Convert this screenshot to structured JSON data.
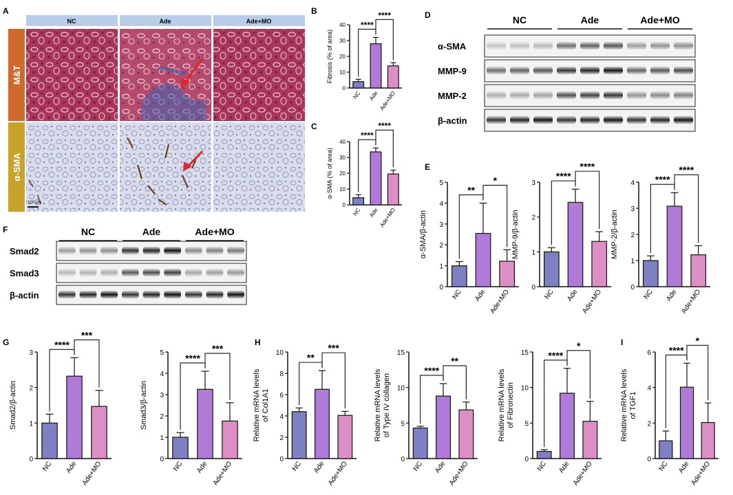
{
  "panel_letters": {
    "A": "A",
    "B": "B",
    "C": "C",
    "D": "D",
    "E": "E",
    "F": "F",
    "G": "G",
    "H": "H",
    "I": "I"
  },
  "histology": {
    "columns": [
      "NC",
      "Ade",
      "Ade+MO"
    ],
    "rows": [
      "M&T",
      "α-SMA"
    ],
    "scale_bar": "100 μm",
    "colors": {
      "column_header": "#b9cde6",
      "mt_row_label": "#d06a2a",
      "sma_row_label": "#c9a22a",
      "mt_tissue": "#a8365a",
      "ihc_tissue": "#cfd3e6",
      "fibrosis_blue": "#3a63b5",
      "arrow": "#e0262b"
    }
  },
  "blot_D": {
    "groups": [
      "NC",
      "Ade",
      "Ade+MO"
    ],
    "bands": [
      "α-SMA",
      "MMP-9",
      "MMP-2",
      "β-actin"
    ]
  },
  "blot_F": {
    "groups": [
      "NC",
      "Ade",
      "Ade+MO"
    ],
    "bands": [
      "Smad2",
      "Smad3",
      "β-actin"
    ]
  },
  "bar_colors": [
    "#7f7fc4",
    "#b07ad8",
    "#dc8fc4"
  ],
  "chart_data": [
    {
      "id": "B",
      "type": "bar",
      "categories": [
        "NC",
        "Ade",
        "Ade+MO"
      ],
      "values": [
        4,
        28,
        14
      ],
      "errors": [
        1.5,
        4,
        2
      ],
      "ylabel": "Fibrosis (% of area)",
      "ylim": [
        0,
        40
      ],
      "yticks": [
        0,
        10,
        20,
        30,
        40
      ],
      "significance": [
        {
          "pair": [
            0,
            1
          ],
          "label": "****"
        },
        {
          "pair": [
            1,
            2
          ],
          "label": "****"
        }
      ]
    },
    {
      "id": "C",
      "type": "bar",
      "categories": [
        "NC",
        "Ade",
        "Ade+MO"
      ],
      "values": [
        4.5,
        33.5,
        19.5
      ],
      "errors": [
        2,
        2.5,
        2.5
      ],
      "ylabel": "α-SMA (% of area)",
      "ylim": [
        0,
        40
      ],
      "yticks": [
        0,
        10,
        20,
        30,
        40
      ],
      "significance": [
        {
          "pair": [
            0,
            1
          ],
          "label": "****"
        },
        {
          "pair": [
            1,
            2
          ],
          "label": "****"
        }
      ]
    },
    {
      "id": "E1",
      "type": "bar",
      "categories": [
        "NC",
        "Ade",
        "Ade+MO"
      ],
      "values": [
        1.0,
        2.55,
        1.22
      ],
      "errors": [
        0.2,
        1.45,
        0.55
      ],
      "ylabel": "α-SMA/β-actin",
      "ylim": [
        0,
        5
      ],
      "yticks": [
        0,
        1,
        2,
        3,
        4,
        5
      ],
      "significance": [
        {
          "pair": [
            0,
            1
          ],
          "label": "**"
        },
        {
          "pair": [
            1,
            2
          ],
          "label": "*"
        }
      ]
    },
    {
      "id": "E2",
      "type": "bar",
      "categories": [
        "NC",
        "Ade",
        "Ade+MO"
      ],
      "values": [
        1.0,
        2.42,
        1.3
      ],
      "errors": [
        0.12,
        0.38,
        0.28
      ],
      "ylabel": "MMP-9/β-actin",
      "ylim": [
        0,
        3
      ],
      "yticks": [
        0,
        1,
        2,
        3
      ],
      "significance": [
        {
          "pair": [
            0,
            1
          ],
          "label": "****"
        },
        {
          "pair": [
            1,
            2
          ],
          "label": "****"
        }
      ]
    },
    {
      "id": "E3",
      "type": "bar",
      "categories": [
        "NC",
        "Ade",
        "Ade+MO"
      ],
      "values": [
        1.0,
        3.08,
        1.22
      ],
      "errors": [
        0.18,
        0.52,
        0.35
      ],
      "ylabel": "MMP-2/β-actin",
      "ylim": [
        0,
        4
      ],
      "yticks": [
        0,
        1,
        2,
        3,
        4
      ],
      "significance": [
        {
          "pair": [
            0,
            1
          ],
          "label": "****"
        },
        {
          "pair": [
            1,
            2
          ],
          "label": "****"
        }
      ]
    },
    {
      "id": "G1",
      "type": "bar",
      "categories": [
        "NC",
        "Ade",
        "Ade+MO"
      ],
      "values": [
        1.0,
        2.32,
        1.47
      ],
      "errors": [
        0.25,
        0.52,
        0.45
      ],
      "ylabel": "Smad2/β-actin",
      "ylim": [
        0,
        3
      ],
      "yticks": [
        0,
        1,
        2,
        3
      ],
      "significance": [
        {
          "pair": [
            0,
            1
          ],
          "label": "****"
        },
        {
          "pair": [
            1,
            2
          ],
          "label": "***"
        }
      ]
    },
    {
      "id": "G2",
      "type": "bar",
      "categories": [
        "NC",
        "Ade",
        "Ade+MO"
      ],
      "values": [
        1.0,
        3.25,
        1.76
      ],
      "errors": [
        0.22,
        0.85,
        0.86
      ],
      "ylabel": "Smad3/β-actin",
      "ylim": [
        0,
        5
      ],
      "yticks": [
        0,
        1,
        2,
        3,
        4,
        5
      ],
      "significance": [
        {
          "pair": [
            0,
            1
          ],
          "label": "****"
        },
        {
          "pair": [
            1,
            2
          ],
          "label": "***"
        }
      ]
    },
    {
      "id": "H1",
      "type": "bar",
      "categories": [
        "NC",
        "Ade",
        "Ade+MO"
      ],
      "values": [
        4.4,
        6.5,
        4.05
      ],
      "errors": [
        0.35,
        1.75,
        0.38
      ],
      "ylabel": "Relative mRNA levels of Col1A1",
      "ylim": [
        0,
        10
      ],
      "yticks": [
        0,
        2,
        4,
        6,
        8,
        10
      ],
      "significance": [
        {
          "pair": [
            0,
            1
          ],
          "label": "**"
        },
        {
          "pair": [
            1,
            2
          ],
          "label": "***"
        }
      ]
    },
    {
      "id": "H2",
      "type": "bar",
      "categories": [
        "NC",
        "Ade",
        "Ade+MO"
      ],
      "values": [
        4.3,
        8.8,
        6.85
      ],
      "errors": [
        0.25,
        1.75,
        1.1
      ],
      "ylabel": "Relative mRNA levels of Type IV collagen",
      "ylim": [
        0,
        15
      ],
      "yticks": [
        0,
        5,
        10,
        15
      ],
      "significance": [
        {
          "pair": [
            0,
            1
          ],
          "label": "****"
        },
        {
          "pair": [
            1,
            2
          ],
          "label": "**"
        }
      ]
    },
    {
      "id": "H3",
      "type": "bar",
      "categories": [
        "NC",
        "Ade",
        "Ade+MO"
      ],
      "values": [
        1.0,
        9.2,
        5.25
      ],
      "errors": [
        0.25,
        3.5,
        2.8
      ],
      "ylabel": "Relative mRNA levels of Fibronectin",
      "ylim": [
        0,
        15
      ],
      "yticks": [
        0,
        5,
        10,
        15
      ],
      "significance": [
        {
          "pair": [
            0,
            1
          ],
          "label": "****"
        },
        {
          "pair": [
            1,
            2
          ],
          "label": "*"
        }
      ]
    },
    {
      "id": "I",
      "type": "bar",
      "categories": [
        "NC",
        "Ade",
        "Ade+MO"
      ],
      "values": [
        1.0,
        4.02,
        2.03
      ],
      "errors": [
        0.55,
        1.35,
        1.1
      ],
      "ylabel": "Relative mRNA levels of TGF1",
      "ylim": [
        0,
        6
      ],
      "yticks": [
        0,
        2,
        4,
        6
      ],
      "significance": [
        {
          "pair": [
            0,
            1
          ],
          "label": "****"
        },
        {
          "pair": [
            1,
            2
          ],
          "label": "*"
        }
      ]
    }
  ]
}
